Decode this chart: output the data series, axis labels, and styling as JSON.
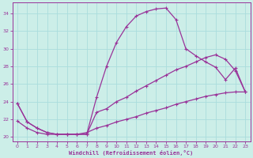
{
  "xlabel": "Windchill (Refroidissement éolien,°C)",
  "bg_color": "#cceee8",
  "grid_color": "#aadddd",
  "line_color": "#993399",
  "xlim": [
    -0.5,
    23.5
  ],
  "ylim": [
    19.5,
    35.2
  ],
  "xticks": [
    0,
    1,
    2,
    3,
    4,
    5,
    6,
    7,
    8,
    9,
    10,
    11,
    12,
    13,
    14,
    15,
    16,
    17,
    18,
    19,
    20,
    21,
    22,
    23
  ],
  "yticks": [
    20,
    22,
    24,
    26,
    28,
    30,
    32,
    34
  ],
  "line1_x": [
    0,
    1,
    2,
    3,
    4,
    5,
    6,
    7,
    8,
    9,
    10,
    11,
    12,
    13,
    14,
    15,
    16,
    17,
    18,
    19,
    20,
    21,
    22,
    23
  ],
  "line1_y": [
    23.8,
    21.7,
    21.0,
    20.5,
    20.3,
    20.3,
    20.3,
    20.3,
    24.5,
    28.0,
    30.7,
    32.5,
    33.7,
    34.2,
    34.5,
    34.6,
    33.3,
    30.0,
    29.2,
    28.5,
    27.9,
    26.5,
    27.8,
    25.1
  ],
  "line2_x": [
    0,
    1,
    2,
    3,
    4,
    5,
    6,
    7,
    8,
    9,
    10,
    11,
    12,
    13,
    14,
    15,
    16,
    17,
    18,
    19,
    20,
    21,
    22,
    23
  ],
  "line2_y": [
    23.8,
    21.7,
    21.0,
    20.5,
    20.3,
    20.3,
    20.3,
    20.3,
    22.8,
    23.2,
    24.0,
    24.5,
    25.2,
    25.8,
    26.4,
    27.0,
    27.6,
    28.0,
    28.5,
    29.0,
    29.3,
    28.8,
    27.5,
    25.1
  ],
  "line3_x": [
    0,
    1,
    2,
    3,
    4,
    5,
    6,
    7,
    8,
    9,
    10,
    11,
    12,
    13,
    14,
    15,
    16,
    17,
    18,
    19,
    20,
    21,
    22,
    23
  ],
  "line3_y": [
    21.8,
    21.0,
    20.5,
    20.3,
    20.3,
    20.3,
    20.3,
    20.5,
    21.0,
    21.3,
    21.7,
    22.0,
    22.3,
    22.7,
    23.0,
    23.3,
    23.7,
    24.0,
    24.3,
    24.6,
    24.8,
    25.0,
    25.1,
    25.1
  ]
}
